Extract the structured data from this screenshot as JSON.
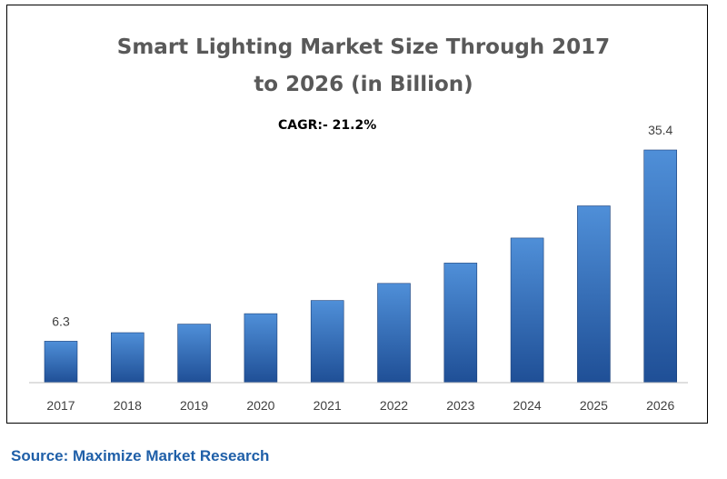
{
  "title_lines": [
    "Smart Lighting Market Size Through 2017",
    "to 2026 (in Billion)"
  ],
  "annotation": "CAGR:- 21.2%",
  "source": "Source: Maximize Market Research",
  "colors": {
    "bar_top": "#4f8fd8",
    "bar_bottom": "#1f4f96",
    "axis": "#bfbfbf",
    "source_text": "#1f5fa8"
  },
  "chart_data": {
    "type": "bar",
    "title": "Smart Lighting Market Size Through 2017 to 2026 (in Billion)",
    "xlabel": "",
    "ylabel": "",
    "categories": [
      "2017",
      "2018",
      "2019",
      "2020",
      "2021",
      "2022",
      "2023",
      "2024",
      "2025",
      "2026"
    ],
    "values": [
      6.3,
      7.6,
      8.9,
      10.5,
      12.5,
      15.1,
      18.2,
      22.0,
      26.9,
      35.4
    ],
    "data_labels": {
      "2017": "6.3",
      "2026": "35.4"
    },
    "grid": false,
    "legend": "none"
  }
}
